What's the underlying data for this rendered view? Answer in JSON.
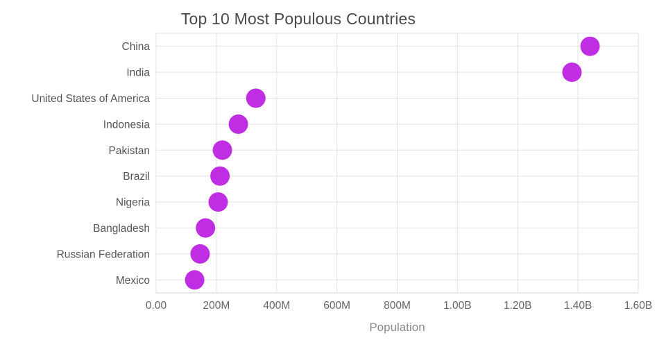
{
  "chart_data": {
    "type": "scatter",
    "title": "Top 10 Most Populous Countries",
    "xlabel": "Population",
    "ylabel": "",
    "categories": [
      "China",
      "India",
      "United States of America",
      "Indonesia",
      "Pakistan",
      "Brazil",
      "Nigeria",
      "Bangladesh",
      "Russian Federation",
      "Mexico"
    ],
    "values": [
      1440000000,
      1380000000,
      331000000,
      273000000,
      220000000,
      212000000,
      206000000,
      164000000,
      146000000,
      128000000
    ],
    "xlim": [
      0,
      1600000000
    ],
    "x_ticks": {
      "values": [
        0,
        200000000,
        400000000,
        600000000,
        800000000,
        1000000000,
        1200000000,
        1400000000,
        1600000000
      ],
      "labels": [
        "0.00",
        "200M",
        "400M",
        "600M",
        "800M",
        "1.00B",
        "1.20B",
        "1.40B",
        "1.60B"
      ]
    },
    "grid": true,
    "legend": "none",
    "marker_color": "#C02EE3"
  },
  "colors": {
    "grid": "#E3E3E3",
    "axis_line": "#D6D6D6",
    "tick_text": "#666666",
    "category_text": "#555555"
  }
}
